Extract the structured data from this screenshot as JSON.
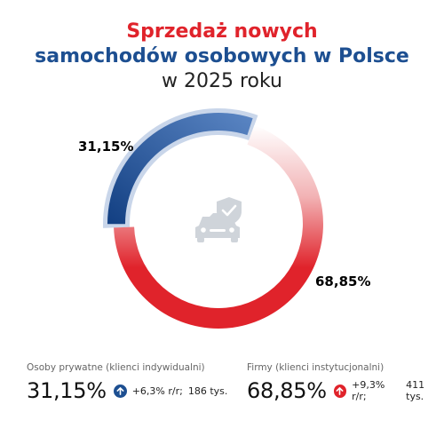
{
  "title": {
    "line1": "Sprzedaż nowych",
    "line2": "samochodów osobowych w Polsce",
    "line3": "w 2025 roku"
  },
  "chart_data": {
    "type": "pie",
    "title": "Sprzedaż nowych samochodów osobowych w Polsce w 2025 roku",
    "categories": [
      "Osoby prywatne (klienci indywidualni)",
      "Firmy (klienci instytucjonalni)"
    ],
    "values": [
      31.15,
      68.85
    ],
    "labels": [
      "31,15%",
      "68,85%"
    ],
    "colors": [
      "#1d4f91",
      "#e0232b"
    ],
    "center_icon": "car-shield-icon"
  },
  "stats": {
    "private": {
      "caption": "Osoby prywatne (klienci indywidualni)",
      "share": "31,15%",
      "change": "+6,3% r/r;",
      "count": "186 tys.",
      "color": "#1d4f91"
    },
    "business": {
      "caption": "Firmy (klienci instytucjonalni)",
      "share": "68,85%",
      "change": "+9,3% r/r;",
      "count": "411 tys.",
      "color": "#e0232b"
    }
  }
}
